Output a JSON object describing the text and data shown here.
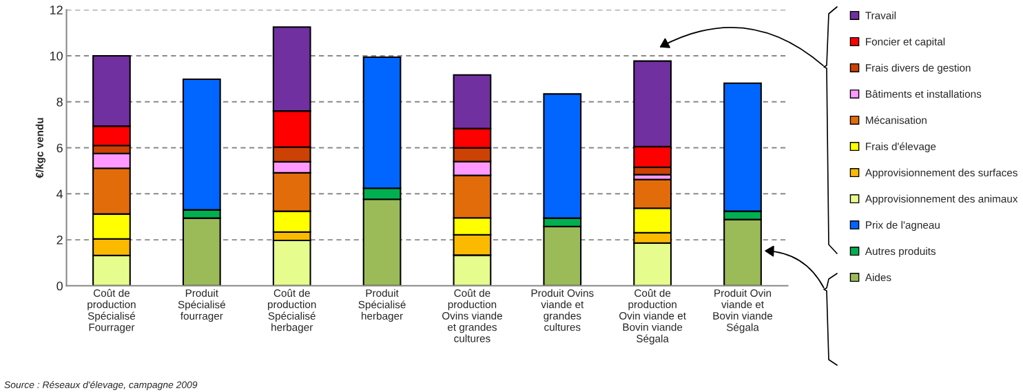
{
  "chart_data": {
    "type": "bar",
    "stacked": true,
    "categories": [
      "Coût de\nproduction\nSpécialisé\nFourrager",
      "Produit\nSpécialisé\nfourrager",
      "Coût de\nproduction\nSpécialisé\nherbager",
      "Produit\nSpécialisé\nherbager",
      "Coût de\nproduction\nOvins viande\net grandes\ncultures",
      "Produit Ovins\nviande et\ngrandes\ncultures",
      "Coût de\nproduction\nOvin viande et\nBovin viande\nSégala",
      "Produit Ovin\nviande et\nBovin viande\nSégala"
    ],
    "series": [
      {
        "name": "Aides",
        "color": "#9bbb59",
        "values": [
          null,
          2.94,
          null,
          3.76,
          null,
          2.58,
          null,
          2.88
        ]
      },
      {
        "name": "Autres produits",
        "color": "#00b050",
        "values": [
          null,
          0.36,
          null,
          0.48,
          null,
          0.36,
          null,
          0.36
        ]
      },
      {
        "name": "Prix de l'agneau",
        "color": "#0066ff",
        "values": [
          null,
          5.68,
          null,
          5.7,
          null,
          5.4,
          null,
          5.57
        ]
      },
      {
        "name": "Approvisionnement des animaux",
        "color": "#e6fc8c",
        "values": [
          1.32,
          null,
          1.97,
          null,
          1.33,
          null,
          1.86,
          null
        ]
      },
      {
        "name": "Approvisionnement des surfaces",
        "color": "#fbba00",
        "values": [
          0.72,
          null,
          0.37,
          null,
          0.89,
          null,
          0.45,
          null
        ]
      },
      {
        "name": "Frais d'élevage",
        "color": "#ffff00",
        "values": [
          1.08,
          null,
          0.9,
          null,
          0.73,
          null,
          1.06,
          null
        ]
      },
      {
        "name": "Mécanisation",
        "color": "#e36c0a",
        "values": [
          1.99,
          null,
          1.67,
          null,
          1.85,
          null,
          1.25,
          null
        ]
      },
      {
        "name": "Bâtiments et installations",
        "color": "#ff99ff",
        "values": [
          0.64,
          null,
          0.48,
          null,
          0.6,
          null,
          0.21,
          null
        ]
      },
      {
        "name": "Frais divers de gestion",
        "color": "#cc4104",
        "values": [
          0.35,
          null,
          0.64,
          null,
          0.6,
          null,
          0.32,
          null
        ]
      },
      {
        "name": "Foncier et capital",
        "color": "#ff0000",
        "values": [
          0.84,
          null,
          1.57,
          null,
          0.84,
          null,
          0.9,
          null
        ]
      },
      {
        "name": "Travail",
        "color": "#7030a0",
        "values": [
          3.06,
          null,
          3.65,
          null,
          2.33,
          null,
          3.72,
          null
        ]
      }
    ],
    "ylim": [
      0,
      12
    ],
    "yticks": [
      0,
      2,
      4,
      6,
      8,
      10,
      12
    ],
    "ylabel": "€/kgc vendu",
    "grid": "y",
    "legend": "right",
    "annotations": [
      "Source : Réseaux d'élevage, campagne 2009"
    ]
  }
}
